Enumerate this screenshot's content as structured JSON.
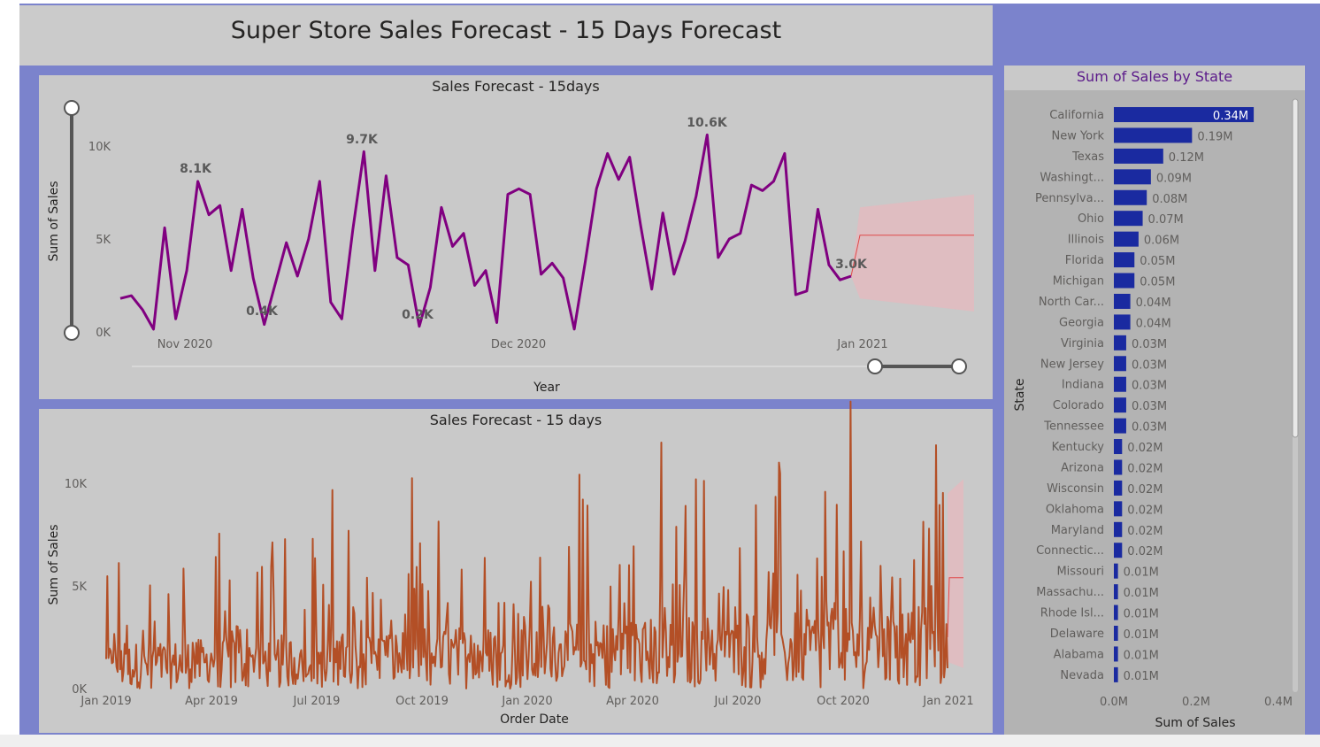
{
  "page": {
    "title": "Super Store Sales Forecast - 15 Days Forecast"
  },
  "colors": {
    "canvas": "#7b83cc",
    "panel": "#c9c9c9",
    "line1": "#800080",
    "line2": "#b34f26",
    "forecast": "#e04a4a",
    "band": "#e6b8bd",
    "bar": "#1a2aa0",
    "bar_title": "#5b1a8a"
  },
  "chart_data": [
    {
      "type": "line",
      "title": "Sales Forecast - 15days",
      "xlabel": "Year",
      "ylabel": "Sum of Sales",
      "x_ticks": [
        "Nov 2020",
        "Dec 2020",
        "Jan 2021"
      ],
      "y_ticks": [
        "0K",
        "5K",
        "10K"
      ],
      "ylim": [
        0,
        12000
      ],
      "data_labels": [
        "8.1K",
        "9.7K",
        "10.6K",
        "0.4K",
        "0.2K",
        "3.0K"
      ],
      "series": [
        {
          "values": [
            1800,
            1950,
            1200,
            150,
            5600,
            700,
            3300,
            8100,
            6300,
            6800,
            3300,
            6600,
            2900,
            400,
            2600,
            4800,
            3000,
            5000,
            8100,
            1600,
            700,
            5500,
            9700,
            3300,
            8400,
            4000,
            3600,
            300,
            2400,
            6700,
            4600,
            5300,
            2500,
            3300,
            500,
            7400,
            7700,
            7400,
            3100,
            3700,
            2900,
            150,
            3800,
            7700,
            9600,
            8200,
            9400,
            5700,
            2300,
            6400,
            3100,
            4900,
            7300,
            10600,
            4000,
            5000,
            5300,
            7900,
            7600,
            8100,
            9600,
            2000,
            2200,
            6600,
            3600,
            2800,
            3000
          ]
        }
      ],
      "forecast": {
        "start_value": 3000,
        "value": 5200,
        "band_upper": [
          6700,
          7400
        ],
        "band_lower": [
          1800,
          1100
        ]
      }
    },
    {
      "type": "line",
      "title": "Sales Forecast - 15 days",
      "xlabel": "Order Date",
      "ylabel": "Sum of Sales",
      "x_ticks": [
        "Jan 2019",
        "Apr 2019",
        "Jul 2019",
        "Oct 2019",
        "Jan 2020",
        "Apr 2020",
        "Jul 2020",
        "Oct 2020",
        "Jan 2021"
      ],
      "y_ticks": [
        "0K",
        "5K",
        "10K"
      ],
      "ylim": [
        0,
        12000
      ],
      "series": [
        {
          "values": []
        }
      ],
      "forecast": {
        "value": 5400,
        "band_upper": [
          9500,
          10200
        ],
        "band_lower": [
          1300,
          1000
        ]
      }
    },
    {
      "type": "bar",
      "title": "Sum of Sales by State",
      "xlabel": "Sum of Sales",
      "ylabel": "State",
      "x_ticks": [
        "0.0M",
        "0.2M",
        "0.4M"
      ],
      "xlim": [
        0,
        0.4
      ],
      "categories": [
        "California",
        "New York",
        "Texas",
        "Washingt...",
        "Pennsylva...",
        "Ohio",
        "Illinois",
        "Florida",
        "Michigan",
        "North Car...",
        "Georgia",
        "Virginia",
        "New Jersey",
        "Indiana",
        "Colorado",
        "Tennessee",
        "Kentucky",
        "Arizona",
        "Wisconsin",
        "Oklahoma",
        "Maryland",
        "Connectic...",
        "Missouri",
        "Massachu...",
        "Rhode Isl...",
        "Delaware",
        "Alabama",
        "Nevada"
      ],
      "values": [
        0.34,
        0.19,
        0.12,
        0.09,
        0.08,
        0.07,
        0.06,
        0.05,
        0.05,
        0.04,
        0.04,
        0.03,
        0.03,
        0.03,
        0.03,
        0.03,
        0.02,
        0.02,
        0.02,
        0.02,
        0.02,
        0.02,
        0.01,
        0.01,
        0.01,
        0.01,
        0.01,
        0.01
      ],
      "value_labels": [
        "0.34M",
        "0.19M",
        "0.12M",
        "0.09M",
        "0.08M",
        "0.07M",
        "0.06M",
        "0.05M",
        "0.05M",
        "0.04M",
        "0.04M",
        "0.03M",
        "0.03M",
        "0.03M",
        "0.03M",
        "0.03M",
        "0.02M",
        "0.02M",
        "0.02M",
        "0.02M",
        "0.02M",
        "0.02M",
        "0.01M",
        "0.01M",
        "0.01M",
        "0.01M",
        "0.01M",
        "0.01M"
      ]
    }
  ]
}
